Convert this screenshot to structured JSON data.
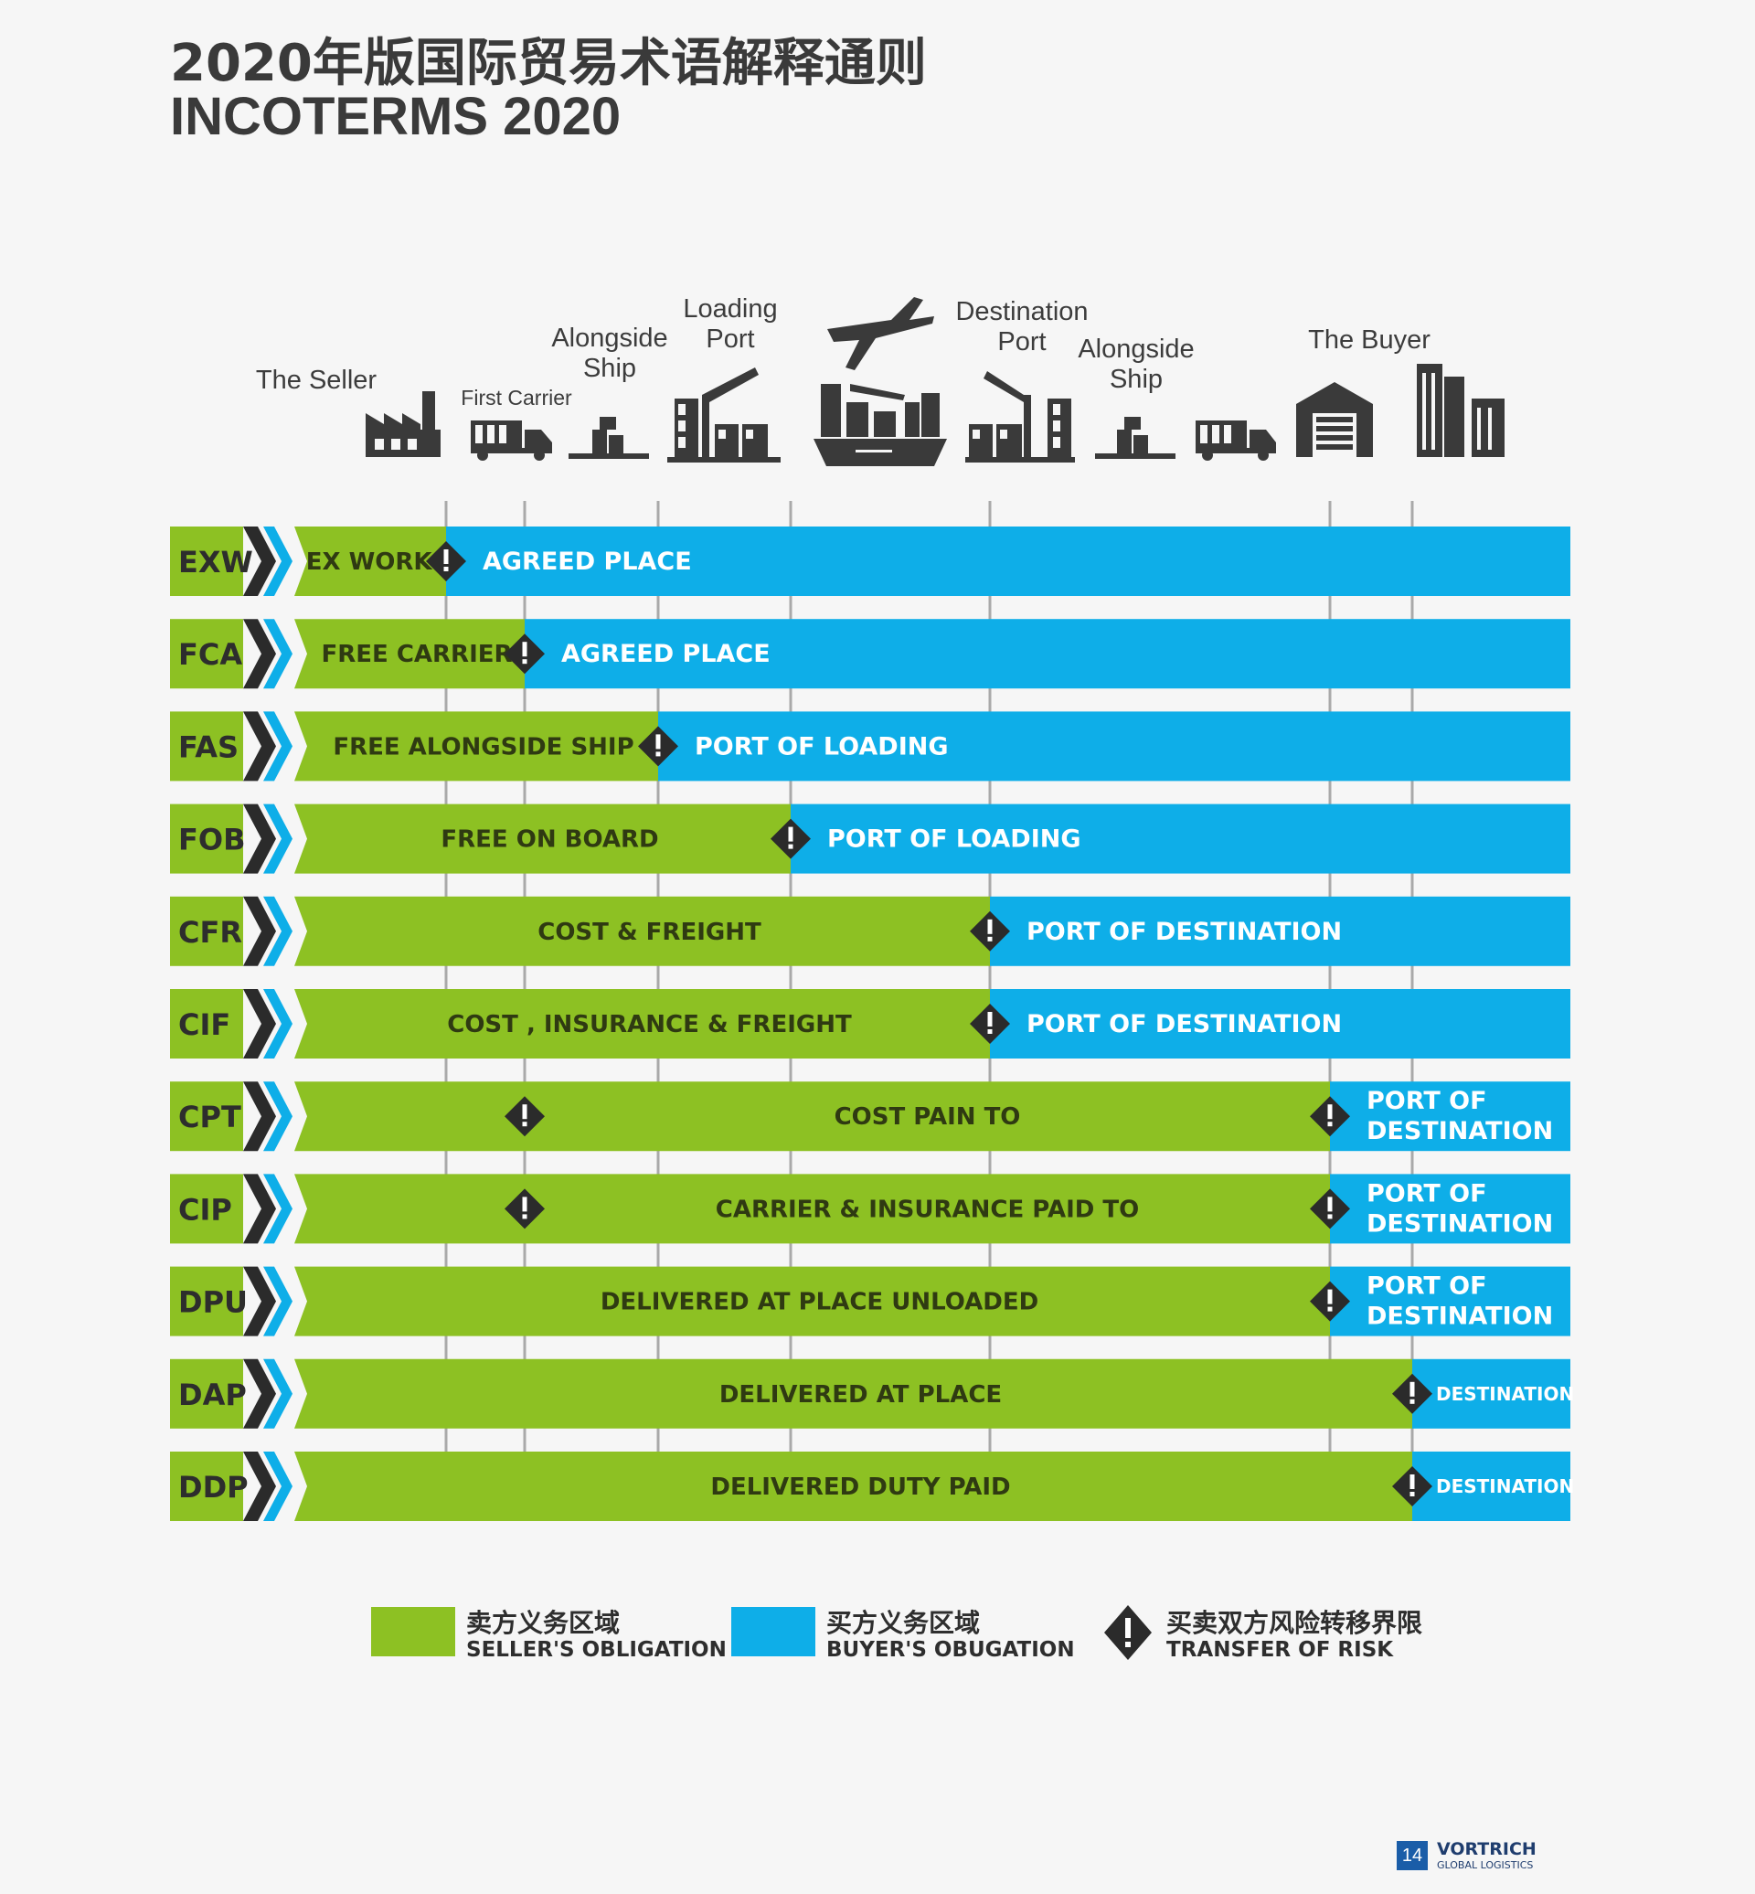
{
  "title": {
    "zh": "2020年版国际贸易术语解释通则",
    "en": "INCOTERMS 2020"
  },
  "stages": [
    {
      "id": "seller",
      "label": "The Seller",
      "icon": "factory-icon"
    },
    {
      "id": "first-carrier",
      "label": "First Carrier",
      "icon": "truck-icon"
    },
    {
      "id": "alongside-ship-origin",
      "label": "Alongside\nShip",
      "icon": "cargo-platform-icon"
    },
    {
      "id": "loading-port",
      "label": "Loading\nPort",
      "icon": "port-crane-icon"
    },
    {
      "id": "transport",
      "label": "",
      "icon": "airplane-ship-icon"
    },
    {
      "id": "destination-port",
      "label": "Destination\nPort",
      "icon": "port-crane-icon"
    },
    {
      "id": "alongside-ship-destination",
      "label": "Alongside\nShip",
      "icon": "cargo-platform-icon"
    },
    {
      "id": "destination-truck",
      "label": "",
      "icon": "truck-icon"
    },
    {
      "id": "buyer",
      "label": "The Buyer",
      "icon": "warehouse-icon"
    },
    {
      "id": "buyer-building",
      "label": "",
      "icon": "office-building-icon"
    }
  ],
  "terms": [
    {
      "code": "EXW",
      "seller_text": "EX WORKS",
      "buyer_text": "AGREED PLACE",
      "risk_markers": [
        1
      ]
    },
    {
      "code": "FCA",
      "seller_text": "FREE CARRIER",
      "buyer_text": "AGREED PLACE",
      "risk_markers": [
        2
      ]
    },
    {
      "code": "FAS",
      "seller_text": "FREE ALONGSIDE SHIP",
      "buyer_text": "PORT OF LOADING",
      "risk_markers": [
        3
      ]
    },
    {
      "code": "FOB",
      "seller_text": "FREE ON BOARD",
      "buyer_text": "PORT OF LOADING",
      "risk_markers": [
        4
      ]
    },
    {
      "code": "CFR",
      "seller_text": "COST & FREIGHT",
      "buyer_text": "PORT OF DESTINATION",
      "risk_markers": [
        5
      ]
    },
    {
      "code": "CIF",
      "seller_text": "COST , INSURANCE & FREIGHT",
      "buyer_text": "PORT OF DESTINATION",
      "risk_markers": [
        5
      ]
    },
    {
      "code": "CPT",
      "seller_text": "COST PAIN TO",
      "buyer_text": "PORT OF\nDESTINATION",
      "risk_markers": [
        2,
        6
      ]
    },
    {
      "code": "CIP",
      "seller_text": "CARRIER & INSURANCE PAID TO",
      "buyer_text": "PORT OF\nDESTINATION",
      "risk_markers": [
        2,
        6
      ]
    },
    {
      "code": "DPU",
      "seller_text": "DELIVERED AT PLACE UNLOADED",
      "buyer_text": "PORT OF\nDESTINATION",
      "risk_markers": [
        6
      ]
    },
    {
      "code": "DAP",
      "seller_text": "DELIVERED AT PLACE",
      "buyer_text": "DESTINATION",
      "risk_markers": [
        7
      ]
    },
    {
      "code": "DDP",
      "seller_text": "DELIVERED DUTY PAID",
      "buyer_text": "DESTINATION",
      "risk_markers": [
        7
      ]
    }
  ],
  "legend": [
    {
      "id": "seller",
      "zh": "卖方义务区域",
      "en": "SELLER'S OBLIGATION",
      "color": "#8dc123"
    },
    {
      "id": "buyer",
      "zh": "买方义务区域",
      "en": "BUYER'S OBUGATION",
      "color": "#0eaee8"
    },
    {
      "id": "risk",
      "zh": "买卖双方风险转移界限",
      "en": "TRANSFER OF RISK",
      "color": "#2b2b2b"
    }
  ],
  "colors": {
    "seller": "#8dc123",
    "buyer": "#0eaee8",
    "marker": "#2b2b2b",
    "gridline": "#a9a9a9",
    "code_bg": "#8dc123",
    "chevron_dark": "#2b2b2b",
    "chevron_blue": "#0eaee8"
  },
  "brand": {
    "page": "14",
    "name": "VORTRICH",
    "sub": "GLOBAL LOGISTICS"
  }
}
